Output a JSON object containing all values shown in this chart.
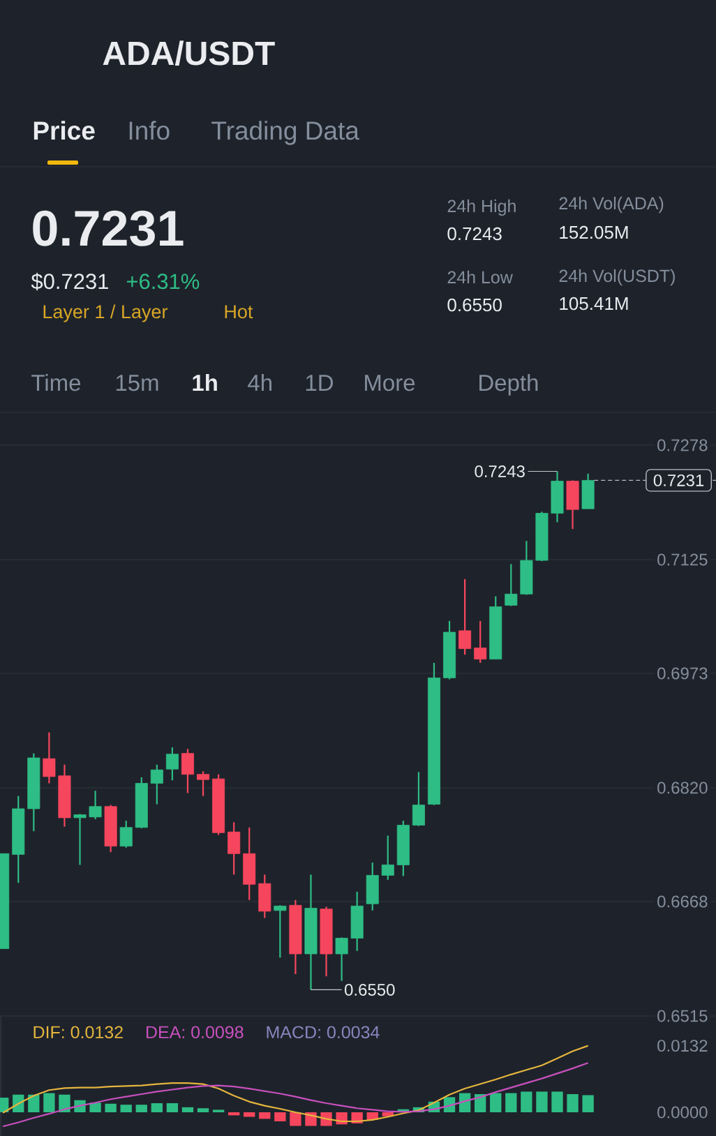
{
  "chart_data": [
    {
      "type": "candlestick",
      "title": "ADA/USDT",
      "annotations": [
        "Price",
        "Info",
        "Trading Data",
        "0.7231",
        "$0.7231",
        "+6.31%",
        "Layer 1 / Layer",
        "Hot",
        "24h High",
        "0.7243",
        "24h Low",
        "0.6550",
        "24h Vol(ADA)",
        "152.05M",
        "24h Vol(USDT)",
        "105.41M",
        "Time",
        "15m",
        "1h",
        "4h",
        "1D",
        "More",
        "Depth",
        "0.7243",
        "0.6550"
      ],
      "categories": [
        null,
        null,
        null,
        null,
        null,
        null,
        null,
        null,
        null,
        null,
        null,
        null,
        null,
        null,
        null,
        null,
        null,
        null,
        null,
        null,
        null,
        null,
        null,
        null,
        null,
        null,
        null,
        null,
        null,
        null,
        null,
        null,
        null,
        null,
        null,
        null,
        null,
        null,
        null
      ],
      "ohlc": [
        [
          0.6605,
          0.6732,
          0.6605,
          0.6732
        ],
        [
          0.6731,
          0.6809,
          0.6693,
          0.6792
        ],
        [
          0.6792,
          0.6866,
          0.6762,
          0.686
        ],
        [
          0.6859,
          0.6894,
          0.6826,
          0.6835
        ],
        [
          0.6836,
          0.6851,
          0.6768,
          0.678
        ],
        [
          0.678,
          0.6785,
          0.6717,
          0.6784
        ],
        [
          0.6781,
          0.6816,
          0.6778,
          0.6795
        ],
        [
          0.6795,
          0.6797,
          0.6734,
          0.6742
        ],
        [
          0.6742,
          0.6776,
          0.674,
          0.6767
        ],
        [
          0.6767,
          0.6834,
          0.6766,
          0.6826
        ],
        [
          0.6826,
          0.6851,
          0.6798,
          0.6844
        ],
        [
          0.6845,
          0.6874,
          0.683,
          0.6865
        ],
        [
          0.6866,
          0.6872,
          0.6813,
          0.6838
        ],
        [
          0.6838,
          0.6842,
          0.6809,
          0.6831
        ],
        [
          0.6832,
          0.6838,
          0.6757,
          0.676
        ],
        [
          0.6761,
          0.6774,
          0.6704,
          0.6732
        ],
        [
          0.6732,
          0.6767,
          0.667,
          0.6691
        ],
        [
          0.6692,
          0.6704,
          0.6646,
          0.6655
        ],
        [
          0.6656,
          0.6663,
          0.6593,
          0.6662
        ],
        [
          0.6663,
          0.667,
          0.6571,
          0.6598
        ],
        [
          0.6598,
          0.6704,
          0.655,
          0.6659
        ],
        [
          0.6658,
          0.6661,
          0.6568,
          0.6598
        ],
        [
          0.6598,
          0.662,
          0.6562,
          0.6619
        ],
        [
          0.6619,
          0.6681,
          0.6602,
          0.6662
        ],
        [
          0.6665,
          0.672,
          0.6656,
          0.6703
        ],
        [
          0.6703,
          0.6756,
          0.6697,
          0.6717
        ],
        [
          0.6717,
          0.6776,
          0.6702,
          0.677
        ],
        [
          0.677,
          0.6841,
          0.6769,
          0.6797
        ],
        [
          0.6798,
          0.6987,
          0.6797,
          0.6967
        ],
        [
          0.6967,
          0.7043,
          0.6965,
          0.7028
        ],
        [
          0.703,
          0.7099,
          0.6998,
          0.7006
        ],
        [
          0.7007,
          0.7043,
          0.6987,
          0.6992
        ],
        [
          0.6992,
          0.7076,
          0.6992,
          0.7062
        ],
        [
          0.7064,
          0.7119,
          0.7063,
          0.7079
        ],
        [
          0.7079,
          0.715,
          0.7078,
          0.7124
        ],
        [
          0.7124,
          0.7189,
          0.7123,
          0.7187
        ],
        [
          0.7187,
          0.7243,
          0.7175,
          0.723
        ],
        [
          0.723,
          0.7231,
          0.7166,
          0.7192
        ],
        [
          0.7193,
          0.724,
          0.7193,
          0.7231
        ]
      ],
      "colors": [
        "#2ebd85",
        "#2ebd85",
        "#2ebd85",
        "#f6465d",
        "#f6465d",
        "#2ebd85",
        "#2ebd85",
        "#f6465d",
        "#2ebd85",
        "#2ebd85",
        "#2ebd85",
        "#2ebd85",
        "#f6465d",
        "#f6465d",
        "#f6465d",
        "#f6465d",
        "#f6465d",
        "#f6465d",
        "#2ebd85",
        "#f6465d",
        "#2ebd85",
        "#f6465d",
        "#2ebd85",
        "#2ebd85",
        "#2ebd85",
        "#2ebd85",
        "#2ebd85",
        "#2ebd85",
        "#2ebd85",
        "#2ebd85",
        "#f6465d",
        "#f6465d",
        "#2ebd85",
        "#2ebd85",
        "#2ebd85",
        "#2ebd85",
        "#2ebd85",
        "#f6465d",
        "#2ebd85"
      ],
      "ylim": [
        0.6515,
        0.7278
      ],
      "yticks": [
        {
          "value": 0.7278,
          "label": "0.7278"
        },
        {
          "value": 0.7125,
          "label": "0.7125"
        },
        {
          "value": 0.6973,
          "label": "0.6973"
        },
        {
          "value": 0.682,
          "label": "0.6820"
        },
        {
          "value": 0.6668,
          "label": "0.6668"
        },
        {
          "value": 0.6515,
          "label": "0.6515"
        }
      ],
      "grid": "y",
      "ref_lines": [
        {
          "axis": "y",
          "value": 0.7231,
          "label": "0.7231",
          "line_style": "dashed",
          "color": "#b7bdc6"
        }
      ]
    },
    {
      "type": "bar",
      "annotations": [
        "MACD: 0.0034"
      ],
      "categories": [
        null,
        null,
        null,
        null,
        null,
        null,
        null,
        null,
        null,
        null,
        null,
        null,
        null,
        null,
        null,
        null,
        null,
        null,
        null,
        null,
        null,
        null,
        null,
        null,
        null,
        null,
        null,
        null,
        null,
        null,
        null,
        null,
        null,
        null,
        null,
        null,
        null,
        null,
        null
      ],
      "series": [
        {
          "name": "DIF: 0.0132",
          "type": "line",
          "color": "#e5b53e",
          "values": [
            -0.0001,
            0.0017,
            0.0033,
            0.0044,
            0.0048,
            0.0049,
            0.0049,
            0.0051,
            0.0052,
            0.0053,
            0.0056,
            0.0058,
            0.0058,
            0.0056,
            0.0047,
            0.0033,
            0.0021,
            0.0013,
            0.0007,
            0.0,
            -0.0006,
            -0.0013,
            -0.0018,
            -0.0018,
            -0.0015,
            -0.0009,
            -0.0002,
            0.0004,
            0.0019,
            0.0035,
            0.0047,
            0.0056,
            0.0065,
            0.0075,
            0.0084,
            0.0093,
            0.0107,
            0.0121,
            0.0132
          ]
        },
        {
          "name": "DEA: 0.0098",
          "type": "line",
          "color": "#c850be",
          "values": [
            -0.0028,
            -0.002,
            -0.0011,
            -0.0003,
            0.0006,
            0.0013,
            0.0019,
            0.0026,
            0.0031,
            0.0036,
            0.0041,
            0.0045,
            0.0049,
            0.0052,
            0.0053,
            0.0051,
            0.0047,
            0.0042,
            0.0037,
            0.0031,
            0.0024,
            0.0018,
            0.0013,
            0.0008,
            0.0005,
            0.0002,
            0.0001,
            0.0002,
            0.0006,
            0.0013,
            0.0022,
            0.003,
            0.004,
            0.0049,
            0.0058,
            0.0067,
            0.0077,
            0.0087,
            0.0098
          ]
        },
        {
          "type": "bar",
          "colors": [
            "#2ebd85",
            "#2ebd85",
            "#2ebd85",
            "#2ebd85",
            "#2ebd85",
            "#2ebd85",
            "#2ebd85",
            "#2ebd85",
            "#2ebd85",
            "#2ebd85",
            "#2ebd85",
            "#2ebd85",
            "#2ebd85",
            "#2ebd85",
            "#2ebd85",
            "#f6465d",
            "#f6465d",
            "#f6465d",
            "#f6465d",
            "#f6465d",
            "#f6465d",
            "#f6465d",
            "#f6465d",
            "#f6465d",
            "#f6465d",
            "#f6465d",
            "#2ebd85",
            "#2ebd85",
            "#2ebd85",
            "#2ebd85",
            "#2ebd85",
            "#2ebd85",
            "#2ebd85",
            "#2ebd85",
            "#2ebd85",
            "#2ebd85",
            "#2ebd85",
            "#2ebd85",
            "#2ebd85"
          ],
          "values": [
            0.0029,
            0.0035,
            0.0035,
            0.0038,
            0.0035,
            0.0024,
            0.0019,
            0.0017,
            0.0015,
            0.0015,
            0.0018,
            0.0018,
            0.001,
            0.0008,
            0.0005,
            -0.0006,
            -0.0009,
            -0.0013,
            -0.0018,
            -0.0027,
            -0.0027,
            -0.0027,
            -0.0024,
            -0.0022,
            -0.0015,
            -0.0008,
            0.0006,
            0.001,
            0.0021,
            0.003,
            0.0038,
            0.0036,
            0.0038,
            0.0038,
            0.0041,
            0.0041,
            0.0041,
            0.0036,
            0.0034
          ]
        }
      ],
      "ylim": [
        -0.0047,
        0.0191
      ],
      "yticks": [
        {
          "value": 0.0132,
          "label": "0.0132"
        },
        {
          "value": 0,
          "label": "0.0000"
        }
      ],
      "legend": "top left"
    }
  ]
}
